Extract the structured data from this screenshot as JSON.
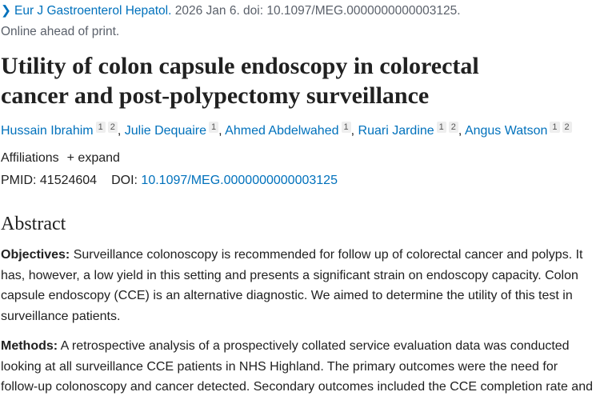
{
  "citation": {
    "journal": "Eur J Gastroenterol Hepatol.",
    "details": " 2026 Jan 6. doi: 10.1097/MEG.0000000000003125.",
    "status": "Online ahead of print."
  },
  "title_line1": "Utility of colon capsule endoscopy in colorectal",
  "title_line2": "cancer and post-polypectomy surveillance",
  "authors": [
    {
      "name": "Hussain Ibrahim",
      "affs": [
        "1",
        "2"
      ]
    },
    {
      "name": "Julie Dequaire",
      "affs": [
        "1"
      ]
    },
    {
      "name": "Ahmed Abdelwahed",
      "affs": [
        "1"
      ]
    },
    {
      "name": "Ruari Jardine",
      "affs": [
        "1",
        "2"
      ]
    },
    {
      "name": "Angus Watson",
      "affs": [
        "1",
        "2"
      ]
    }
  ],
  "affiliations": {
    "label": "Affiliations",
    "expand": "+ expand"
  },
  "ids": {
    "pmid_label": "PMID: 41524604",
    "doi_label": "DOI:",
    "doi": "10.1097/MEG.0000000000003125"
  },
  "abstract": {
    "heading": "Abstract",
    "objectives_label": "Objectives:",
    "objectives": " Surveillance colonoscopy is recommended for follow up of colorectal cancer and polyps. It has, however, a low yield in this setting and presents a significant strain on endoscopy capacity. Colon capsule endoscopy (CCE) is an alternative diagnostic. We aimed to determine the utility of this test in surveillance patients.",
    "methods_label": "Methods:",
    "methods": " A retrospective analysis of a prospectively collated service evaluation data was conducted looking at all surveillance CCE patients in NHS Highland. The primary outcomes were the need for follow-up colonoscopy and cancer detected. Secondary outcomes included the CCE completion rate and"
  }
}
